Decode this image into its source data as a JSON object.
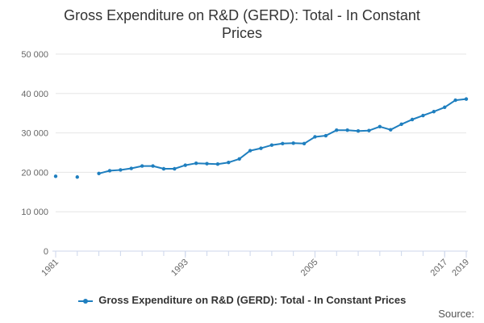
{
  "chart_data": {
    "type": "line",
    "title_lines": [
      "Gross Expenditure on R&D (GERD): Total - In Constant",
      "Prices"
    ],
    "xlabel": "",
    "ylabel": "",
    "ylim": [
      0,
      50000
    ],
    "xlim": [
      1981,
      2019
    ],
    "yticks": [
      {
        "value": 0,
        "label": "0"
      },
      {
        "value": 10000,
        "label": "10 000"
      },
      {
        "value": 20000,
        "label": "20 000"
      },
      {
        "value": 30000,
        "label": "30 000"
      },
      {
        "value": 40000,
        "label": "40 000"
      },
      {
        "value": 50000,
        "label": "50 000"
      }
    ],
    "xtick_labels": [
      {
        "value": 1981,
        "label": "1981"
      },
      {
        "value": 1993,
        "label": "1993"
      },
      {
        "value": 2005,
        "label": "2005"
      },
      {
        "value": 2017,
        "label": "2017"
      },
      {
        "value": 2019,
        "label": "2019"
      }
    ],
    "grid": true,
    "legend_position": "bottom",
    "series": [
      {
        "name": "Gross Expenditure on R&D (GERD): Total - In Constant Prices",
        "color": "#1f7fbf",
        "x": [
          1981,
          1983,
          1985,
          1986,
          1987,
          1988,
          1989,
          1990,
          1991,
          1992,
          1993,
          1994,
          1995,
          1996,
          1997,
          1998,
          1999,
          2000,
          2001,
          2002,
          2003,
          2004,
          2005,
          2006,
          2007,
          2008,
          2009,
          2010,
          2011,
          2012,
          2013,
          2014,
          2015,
          2016,
          2017,
          2018,
          2019
        ],
        "y": [
          19000,
          18800,
          19700,
          20400,
          20600,
          21000,
          21600,
          21600,
          20900,
          20900,
          21800,
          22300,
          22200,
          22100,
          22500,
          23400,
          25500,
          26100,
          26900,
          27300,
          27400,
          27300,
          29000,
          29300,
          30700,
          30700,
          30500,
          30600,
          31600,
          30800,
          32200,
          33400,
          34400,
          35400,
          36500,
          38300,
          38600
        ]
      }
    ],
    "source_label": "Source:"
  }
}
